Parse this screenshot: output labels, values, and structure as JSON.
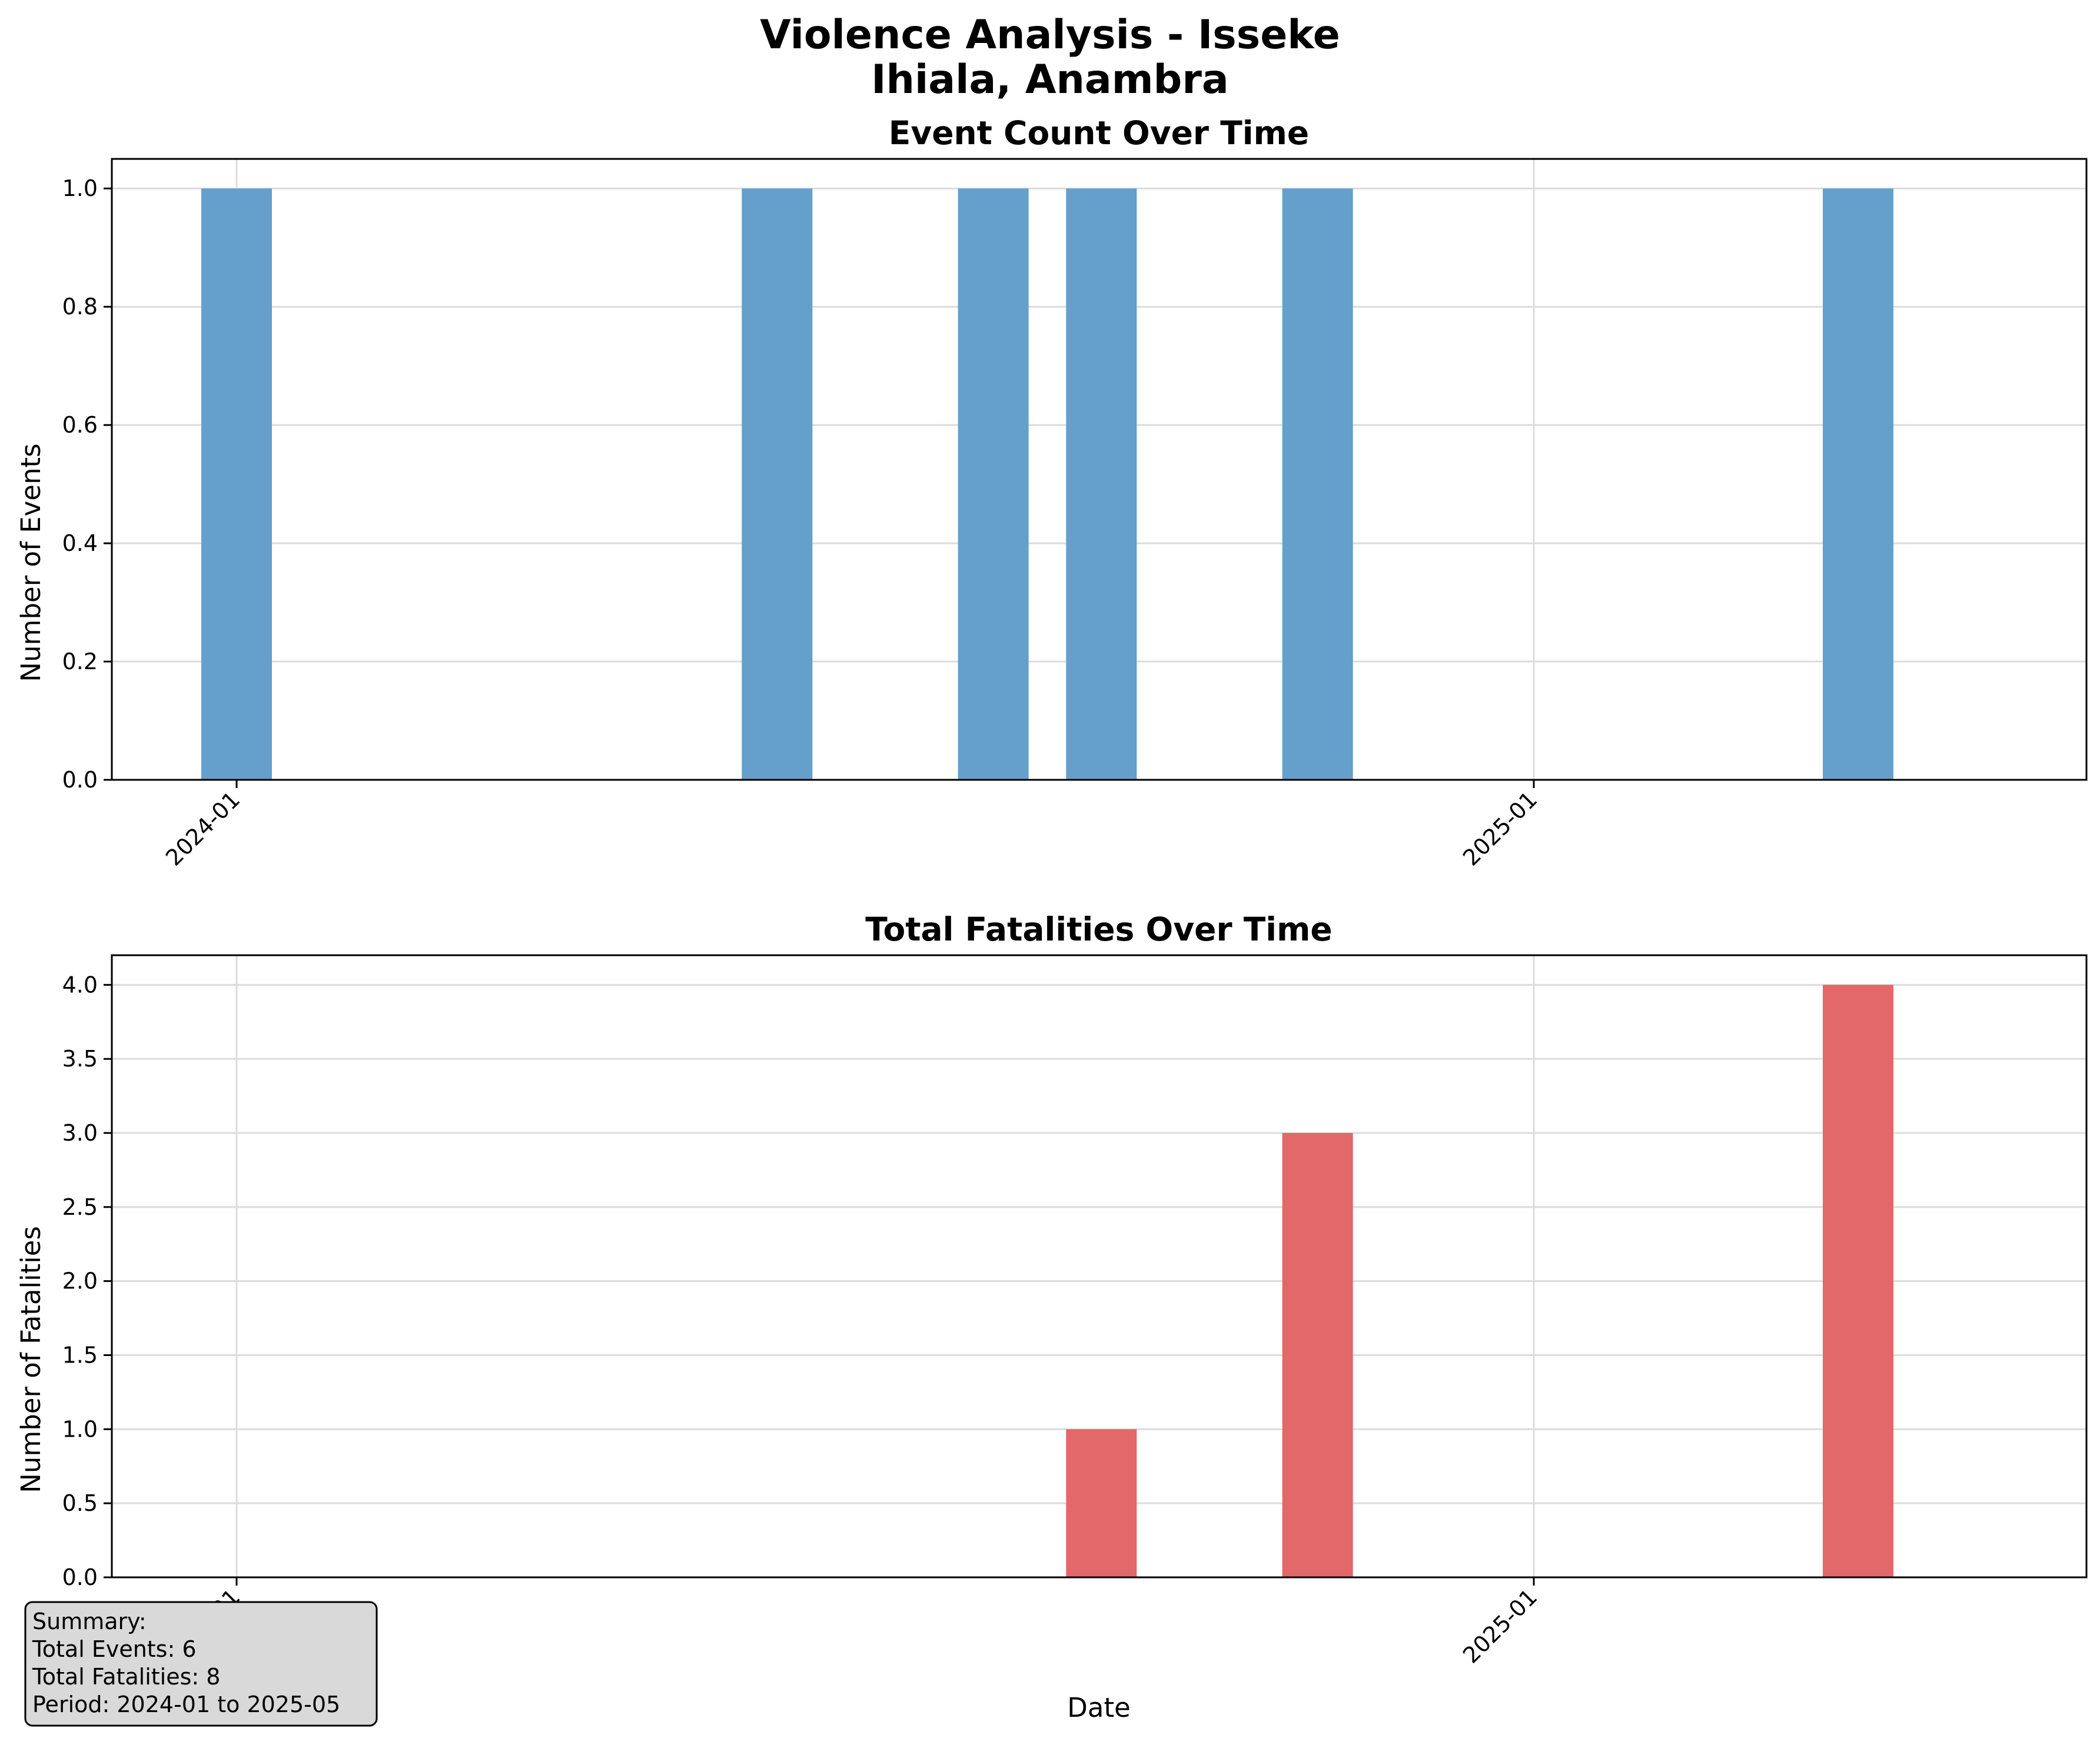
{
  "figure": {
    "title_line1": "Violence Analysis - Isseke",
    "title_line2": "Ihiala, Anambra"
  },
  "chart_data": [
    {
      "type": "bar",
      "title": "Event Count Over Time",
      "xlabel": "",
      "ylabel": "Number of Events",
      "x": [
        "2024-01",
        "2024-06",
        "2024-08",
        "2024-09",
        "2024-11",
        "2025-04"
      ],
      "values": [
        1,
        1,
        1,
        1,
        1,
        1
      ],
      "ylim": [
        0,
        1.05
      ],
      "yticks": [
        "0.0",
        "0.2",
        "0.4",
        "0.6",
        "0.8",
        "1.0"
      ],
      "xticks": [
        "2024-01",
        "2025-01"
      ],
      "grid": true,
      "color": "#1f77b4"
    },
    {
      "type": "bar",
      "title": "Total Fatalities Over Time",
      "xlabel": "Date",
      "ylabel": "Number of Fatalities",
      "x": [
        "2024-01",
        "2024-06",
        "2024-08",
        "2024-09",
        "2024-11",
        "2025-04"
      ],
      "values": [
        0,
        0,
        0,
        1,
        3,
        4
      ],
      "ylim": [
        0,
        4.2
      ],
      "yticks": [
        "0.0",
        "0.5",
        "1.0",
        "1.5",
        "2.0",
        "2.5",
        "3.0",
        "3.5",
        "4.0"
      ],
      "xticks": [
        "2024-01",
        "2025-01"
      ],
      "grid": true,
      "color": "#d62728"
    }
  ],
  "summary": {
    "line1": "Summary:",
    "line2": "Total Events: 6",
    "line3": "Total Fatalities: 8",
    "line4": "Period: 2024-01 to 2025-05"
  }
}
